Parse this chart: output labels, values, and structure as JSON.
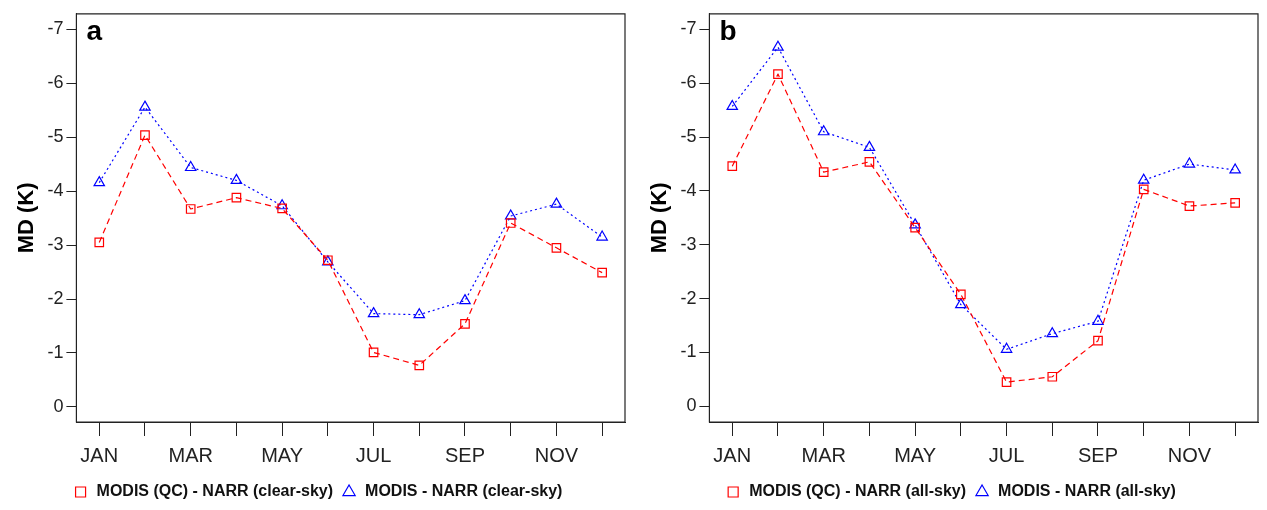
{
  "chart_data": [
    {
      "type": "line",
      "title": "a",
      "ylabel": "MD (K)",
      "categories": [
        "JAN",
        null,
        "MAR",
        null,
        "MAY",
        null,
        "JUL",
        null,
        "SEP",
        null,
        "NOV",
        null
      ],
      "ylim": [
        0.28,
        -7.29
      ],
      "yticks": [
        0,
        -1,
        -2,
        -3,
        -4,
        -5,
        -6,
        -7
      ],
      "grid": false,
      "legend": "bottom",
      "series": [
        {
          "name": "MODIS (QC) - NARR (clear-sky)",
          "color": "#ff0000",
          "marker": "square",
          "line_style": "dashed",
          "values": [
            -3.05,
            -5.04,
            -3.67,
            -3.88,
            -3.68,
            -2.72,
            -1.01,
            -0.77,
            -1.54,
            -3.41,
            -2.95,
            -2.49
          ]
        },
        {
          "name": "MODIS - NARR (clear-sky)",
          "color": "#0000ff",
          "marker": "triangle",
          "line_style": "dotted",
          "values": [
            -4.16,
            -5.56,
            -4.44,
            -4.2,
            -3.73,
            -2.69,
            -1.73,
            -1.71,
            -1.97,
            -3.54,
            -3.76,
            -3.15
          ]
        }
      ]
    },
    {
      "type": "line",
      "title": "b",
      "ylabel": "MD (K)",
      "categories": [
        "JAN",
        null,
        "MAR",
        null,
        "MAY",
        null,
        "JUL",
        null,
        "SEP",
        null,
        "NOV",
        null
      ],
      "ylim": [
        0.29,
        -7.29
      ],
      "yticks": [
        0,
        -1,
        -2,
        -3,
        -4,
        -5,
        -6,
        -7
      ],
      "grid": false,
      "legend": "bottom",
      "series": [
        {
          "name": "MODIS (QC) - NARR (all-sky)",
          "color": "#ff0000",
          "marker": "square",
          "line_style": "dashed",
          "values": [
            -4.46,
            -6.17,
            -4.35,
            -4.54,
            -3.32,
            -2.08,
            -0.45,
            -0.55,
            -1.22,
            -4.03,
            -3.72,
            -3.78
          ]
        },
        {
          "name": "MODIS - NARR (all-sky)",
          "color": "#0000ff",
          "marker": "triangle",
          "line_style": "dotted",
          "values": [
            -5.57,
            -6.67,
            -5.1,
            -4.81,
            -3.37,
            -1.89,
            -1.06,
            -1.35,
            -1.58,
            -4.2,
            -4.5,
            -4.39
          ]
        }
      ]
    }
  ]
}
